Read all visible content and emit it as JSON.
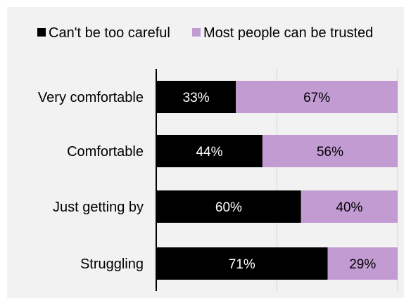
{
  "chart_data": {
    "type": "bar",
    "orientation": "horizontal",
    "stacked": true,
    "percent": true,
    "categories": [
      "Very comfortable",
      "Comfortable",
      "Just getting by",
      "Struggling"
    ],
    "series": [
      {
        "name": "Can't be too careful",
        "color": "#000000",
        "label_color": "#ffffff",
        "values": [
          33,
          44,
          60,
          71
        ],
        "labels": [
          "33%",
          "44%",
          "60%",
          "71%"
        ]
      },
      {
        "name": "Most people can be trusted",
        "color": "#c39bd3",
        "label_color": "#000000",
        "values": [
          67,
          56,
          40,
          29
        ],
        "labels": [
          "67%",
          "56%",
          "40%",
          "29%"
        ]
      }
    ],
    "xlim": [
      0,
      100
    ],
    "grid": true,
    "legend_position": "top",
    "background": "#f2f2f2"
  }
}
